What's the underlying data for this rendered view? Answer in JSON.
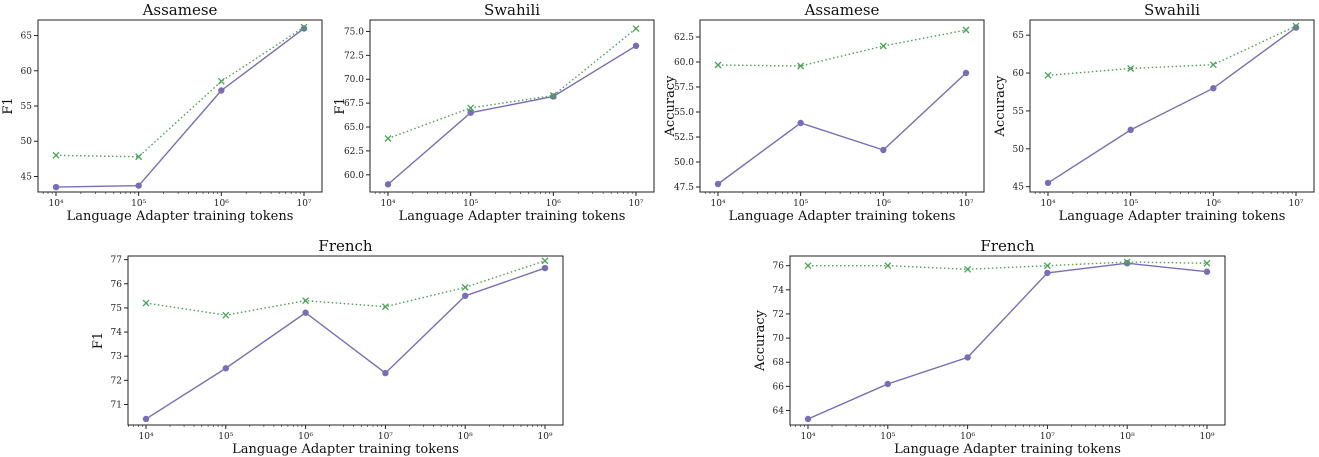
{
  "colors": {
    "solid_series": "#7b6db5",
    "dotted_series": "#4ca356"
  },
  "chart_data": [
    {
      "type": "line",
      "title": "Assamese",
      "xlabel": "Language Adapter training tokens",
      "ylabel": "F1",
      "x_scale": "log",
      "x": [
        10000,
        100000,
        1000000,
        10000000
      ],
      "x_tick_labels": [
        "10⁴",
        "10⁵",
        "10⁶",
        "10⁷"
      ],
      "ylim": [
        42.8,
        67.2
      ],
      "y_ticks": [
        45,
        50,
        55,
        60,
        65
      ],
      "y_tick_labels": [
        "45",
        "50",
        "55",
        "60",
        "65"
      ],
      "series": [
        {
          "style": "solid-circle",
          "values": [
            43.5,
            43.7,
            57.2,
            66.0
          ]
        },
        {
          "style": "dotted-x",
          "values": [
            48.0,
            47.8,
            58.5,
            66.2
          ]
        }
      ]
    },
    {
      "type": "line",
      "title": "Swahili",
      "xlabel": "Language Adapter training tokens",
      "ylabel": "F1",
      "x_scale": "log",
      "x": [
        10000,
        100000,
        1000000,
        10000000
      ],
      "x_tick_labels": [
        "10⁴",
        "10⁵",
        "10⁶",
        "10⁷"
      ],
      "ylim": [
        58.2,
        76.2
      ],
      "y_ticks": [
        60,
        62.5,
        65,
        67.5,
        70,
        72.5,
        75
      ],
      "y_tick_labels": [
        "60.0",
        "62.5",
        "65.0",
        "67.5",
        "70.0",
        "72.5",
        "75.0"
      ],
      "series": [
        {
          "style": "solid-circle",
          "values": [
            59.0,
            66.5,
            68.2,
            73.5
          ]
        },
        {
          "style": "dotted-x",
          "values": [
            63.8,
            67.0,
            68.3,
            75.3
          ]
        }
      ]
    },
    {
      "type": "line",
      "title": "Assamese",
      "xlabel": "Language Adapter training tokens",
      "ylabel": "Accuracy",
      "x_scale": "log",
      "x": [
        10000,
        100000,
        1000000,
        10000000
      ],
      "x_tick_labels": [
        "10⁴",
        "10⁵",
        "10⁶",
        "10⁷"
      ],
      "ylim": [
        47.0,
        64.2
      ],
      "y_ticks": [
        47.5,
        50,
        52.5,
        55,
        57.5,
        60,
        62.5
      ],
      "y_tick_labels": [
        "47.5",
        "50.0",
        "52.5",
        "55.0",
        "57.5",
        "60.0",
        "62.5"
      ],
      "series": [
        {
          "style": "solid-circle",
          "values": [
            47.8,
            53.9,
            51.2,
            58.9
          ]
        },
        {
          "style": "dotted-x",
          "values": [
            59.7,
            59.6,
            61.6,
            63.2
          ]
        }
      ]
    },
    {
      "type": "line",
      "title": "Swahili",
      "xlabel": "Language Adapter training tokens",
      "ylabel": "Accuracy",
      "x_scale": "log",
      "x": [
        10000,
        100000,
        1000000,
        10000000
      ],
      "x_tick_labels": [
        "10⁴",
        "10⁵",
        "10⁶",
        "10⁷"
      ],
      "ylim": [
        44.3,
        67.0
      ],
      "y_ticks": [
        45,
        50,
        55,
        60,
        65
      ],
      "y_tick_labels": [
        "45",
        "50",
        "55",
        "60",
        "65"
      ],
      "series": [
        {
          "style": "solid-circle",
          "values": [
            45.5,
            52.5,
            58.0,
            66.0
          ]
        },
        {
          "style": "dotted-x",
          "values": [
            59.7,
            60.6,
            61.1,
            66.2
          ]
        }
      ]
    },
    {
      "type": "line",
      "title": "French",
      "xlabel": "Language Adapter training tokens",
      "ylabel": "F1",
      "x_scale": "log",
      "x": [
        10000,
        100000,
        1000000,
        10000000,
        100000000,
        1000000000
      ],
      "x_tick_labels": [
        "10⁴",
        "10⁵",
        "10⁶",
        "10⁷",
        "10⁸",
        "10⁹"
      ],
      "ylim": [
        70.15,
        77.15
      ],
      "y_ticks": [
        71,
        72,
        73,
        74,
        75,
        76,
        77
      ],
      "y_tick_labels": [
        "71",
        "72",
        "73",
        "74",
        "75",
        "76",
        "77"
      ],
      "series": [
        {
          "style": "solid-circle",
          "values": [
            70.4,
            72.5,
            74.8,
            72.3,
            75.5,
            76.65
          ]
        },
        {
          "style": "dotted-x",
          "values": [
            75.2,
            74.7,
            75.3,
            75.05,
            75.85,
            76.95
          ]
        }
      ]
    },
    {
      "type": "line",
      "title": "French",
      "xlabel": "Language Adapter training tokens",
      "ylabel": "Accuracy",
      "x_scale": "log",
      "x": [
        10000,
        100000,
        1000000,
        10000000,
        100000000,
        1000000000
      ],
      "x_tick_labels": [
        "10⁴",
        "10⁵",
        "10⁶",
        "10⁷",
        "10⁸",
        "10⁹"
      ],
      "ylim": [
        62.8,
        76.8
      ],
      "y_ticks": [
        64,
        66,
        68,
        70,
        72,
        74,
        76
      ],
      "y_tick_labels": [
        "64",
        "66",
        "68",
        "70",
        "72",
        "74",
        "76"
      ],
      "series": [
        {
          "style": "solid-circle",
          "values": [
            63.3,
            66.2,
            68.4,
            75.4,
            76.2,
            75.5
          ]
        },
        {
          "style": "dotted-x",
          "values": [
            76.0,
            76.0,
            75.7,
            76.0,
            76.3,
            76.2
          ]
        }
      ]
    }
  ]
}
